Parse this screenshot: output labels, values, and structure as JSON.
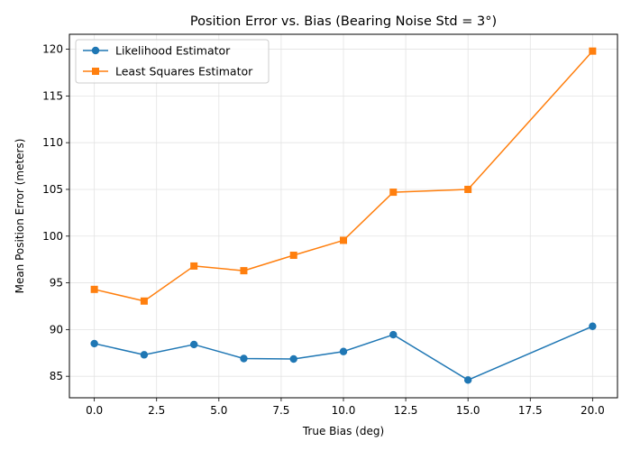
{
  "chart_data": {
    "type": "line",
    "title": "Position Error vs. Bias (Bearing Noise Std = 3°)",
    "xlabel": "True Bias (deg)",
    "ylabel": "Mean Position Error (meters)",
    "xlim": [
      -1.0,
      21.0
    ],
    "ylim": [
      82.7,
      121.6
    ],
    "x_ticks": [
      0.0,
      2.5,
      5.0,
      7.5,
      10.0,
      12.5,
      15.0,
      17.5,
      20.0
    ],
    "x_tick_labels": [
      "0.0",
      "2.5",
      "5.0",
      "7.5",
      "10.0",
      "12.5",
      "15.0",
      "17.5",
      "20.0"
    ],
    "y_ticks": [
      85,
      90,
      95,
      100,
      105,
      110,
      115,
      120
    ],
    "y_tick_labels": [
      "85",
      "90",
      "95",
      "100",
      "105",
      "110",
      "115",
      "120"
    ],
    "grid": true,
    "legend_position": "top-left",
    "x": [
      0,
      2,
      4,
      6,
      8,
      10,
      12,
      15,
      20
    ],
    "series": [
      {
        "name": "Likelihood Estimator",
        "color": "#1f77b4",
        "marker": "circle",
        "values": [
          88.5,
          87.3,
          88.4,
          86.9,
          86.85,
          87.65,
          89.45,
          84.6,
          90.35
        ]
      },
      {
        "name": "Least Squares Estimator",
        "color": "#ff7f0e",
        "marker": "square",
        "values": [
          94.3,
          93.05,
          96.8,
          96.3,
          97.95,
          99.55,
          104.7,
          105.0,
          119.8
        ]
      }
    ]
  }
}
